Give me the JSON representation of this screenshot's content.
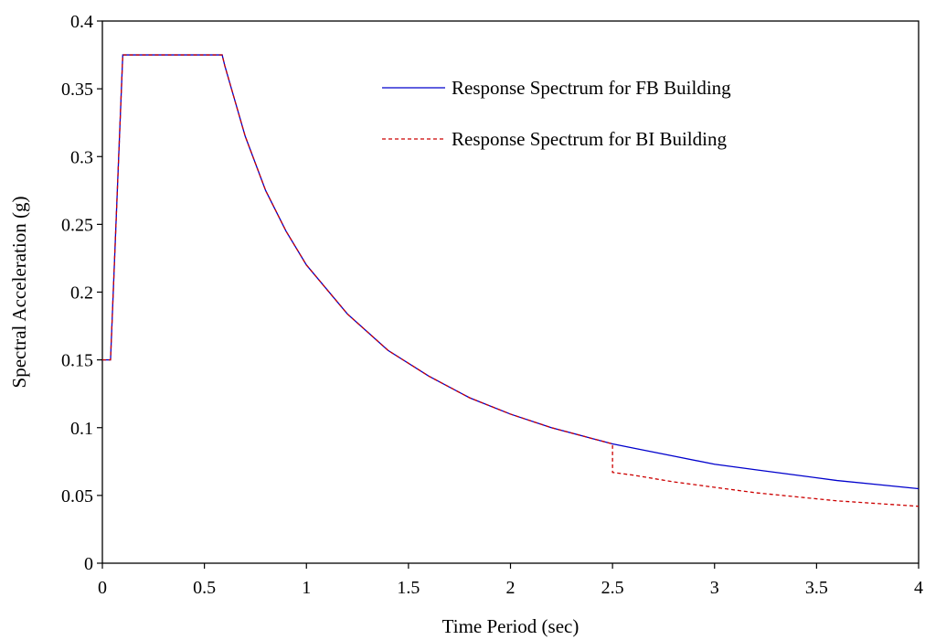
{
  "chart_data": {
    "type": "line",
    "title": "",
    "xlabel": "Time Period (sec)",
    "ylabel": "Spectral Acceleration (g)",
    "xlim": [
      0,
      4
    ],
    "ylim": [
      0,
      0.4
    ],
    "xticks": [
      0,
      0.5,
      1,
      1.5,
      2,
      2.5,
      3,
      3.5,
      4
    ],
    "xtick_labels": [
      "0",
      "0.5",
      "1",
      "1.5",
      "2",
      "2.5",
      "3",
      "3.5",
      "4"
    ],
    "yticks": [
      0,
      0.05,
      0.1,
      0.15,
      0.2,
      0.25,
      0.3,
      0.35,
      0.4
    ],
    "ytick_labels": [
      "0",
      "0.05",
      "0.1",
      "0.15",
      "0.2",
      "0.25",
      "0.3",
      "0.35",
      "0.4"
    ],
    "grid": false,
    "legend_position": "top-right",
    "series": [
      {
        "name": "Response Spectrum for FB Building",
        "color": "#0000cc",
        "dash": "solid",
        "x": [
          0,
          0.04,
          0.1,
          0.2,
          0.3,
          0.4,
          0.5,
          0.587,
          0.6,
          0.7,
          0.8,
          0.9,
          1.0,
          1.2,
          1.4,
          1.6,
          1.8,
          2.0,
          2.2,
          2.4,
          2.5,
          2.6,
          2.8,
          3.0,
          3.2,
          3.4,
          3.6,
          3.8,
          4.0
        ],
        "y": [
          0.15,
          0.15,
          0.375,
          0.375,
          0.375,
          0.375,
          0.375,
          0.375,
          0.367,
          0.315,
          0.275,
          0.245,
          0.22,
          0.184,
          0.157,
          0.138,
          0.122,
          0.11,
          0.1,
          0.092,
          0.088,
          0.085,
          0.079,
          0.073,
          0.069,
          0.065,
          0.061,
          0.058,
          0.055
        ]
      },
      {
        "name": "Response Spectrum for BI Building",
        "color": "#cc0000",
        "dash": "dashed",
        "x": [
          0,
          0.04,
          0.1,
          0.2,
          0.3,
          0.4,
          0.5,
          0.587,
          0.6,
          0.7,
          0.8,
          0.9,
          1.0,
          1.2,
          1.4,
          1.6,
          1.8,
          2.0,
          2.2,
          2.4,
          2.5,
          2.5,
          2.6,
          2.8,
          3.0,
          3.2,
          3.4,
          3.6,
          3.8,
          4.0
        ],
        "y": [
          0.15,
          0.15,
          0.375,
          0.375,
          0.375,
          0.375,
          0.375,
          0.375,
          0.367,
          0.315,
          0.275,
          0.245,
          0.22,
          0.184,
          0.157,
          0.138,
          0.122,
          0.11,
          0.1,
          0.092,
          0.088,
          0.067,
          0.065,
          0.06,
          0.056,
          0.052,
          0.049,
          0.046,
          0.044,
          0.042
        ]
      }
    ]
  }
}
